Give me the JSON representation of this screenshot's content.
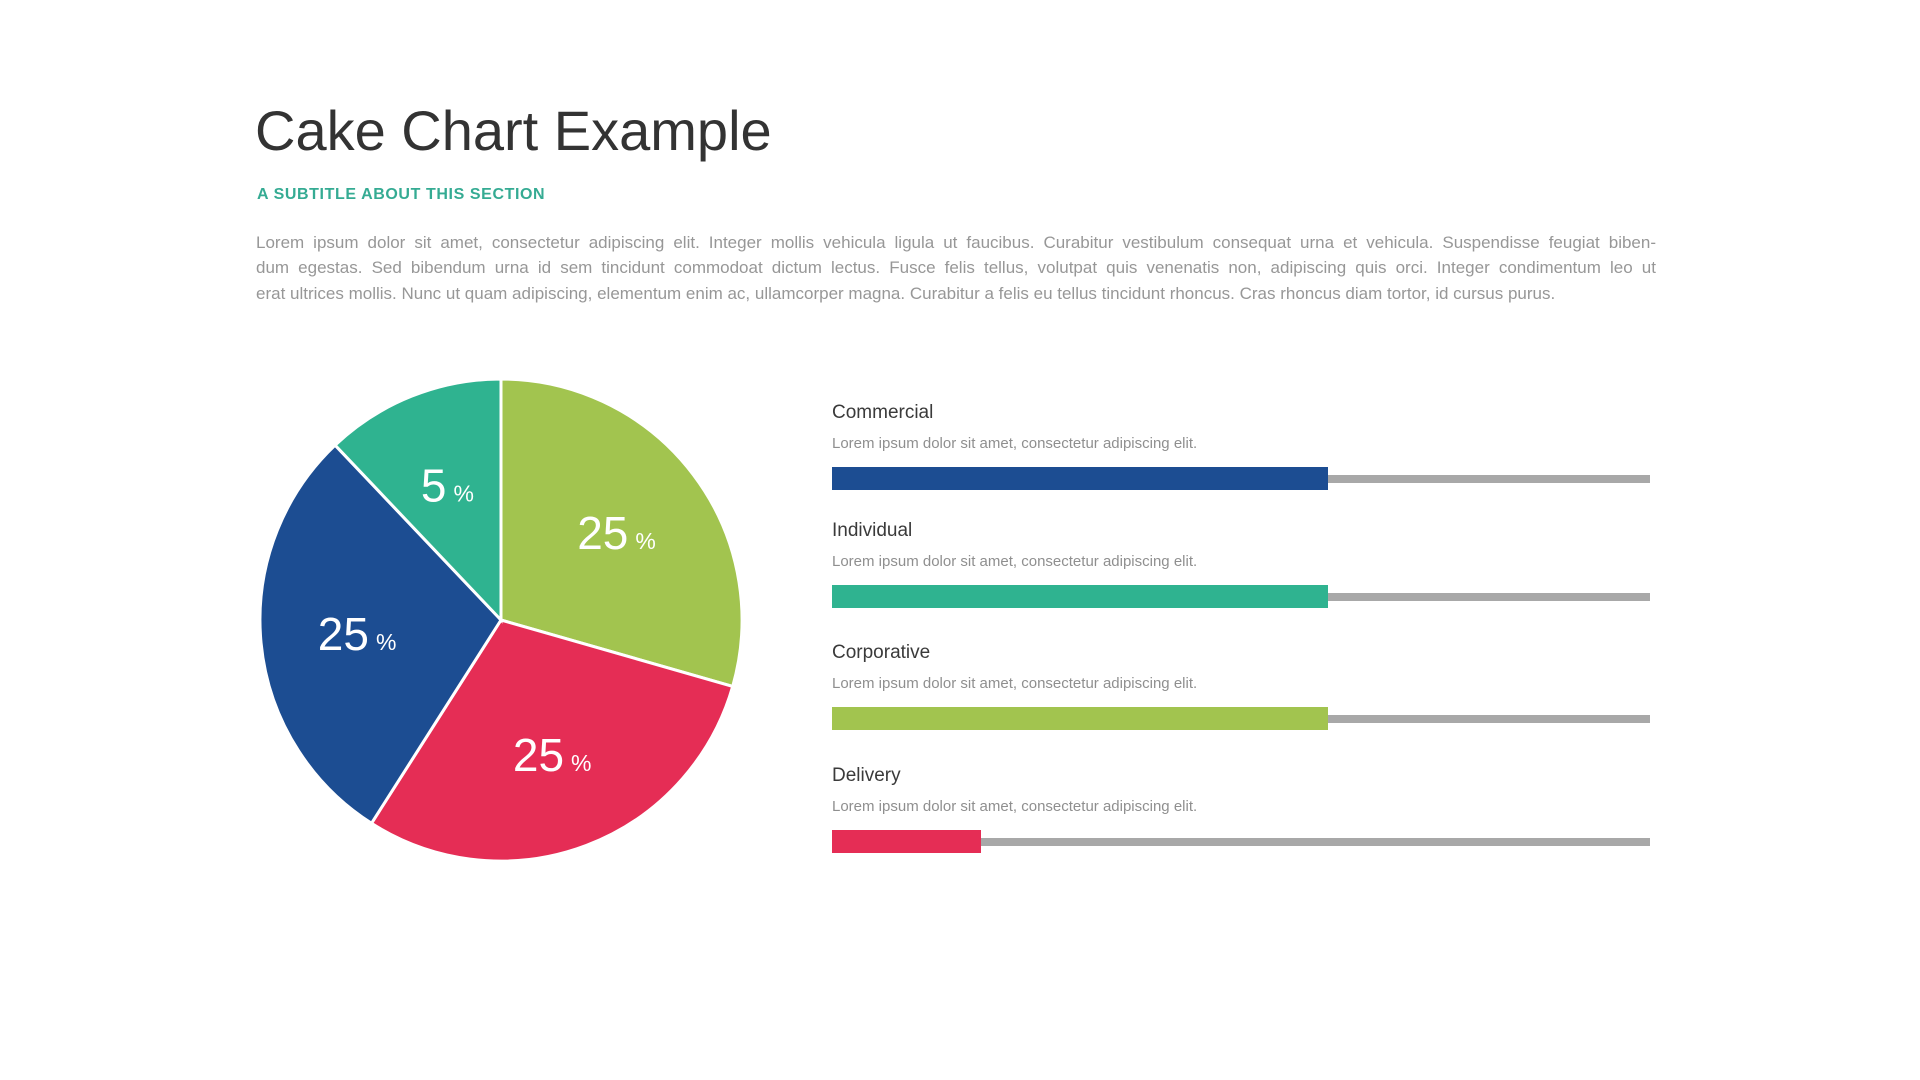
{
  "page": {
    "title": "Cake Chart Example",
    "subtitle": "A SUBTITLE ABOUT THIS SECTION",
    "subtitle_color": "#35ab93",
    "paragraph_lines": [
      "Lorem ipsum dolor sit amet, consectetur adipiscing elit. Integer mollis vehicula ligula ut faucibus. Curabitur vestibulum consequat urna et vehicula. Suspendisse feugiat biben-",
      "dum egestas. Sed bibendum urna id sem tincidunt commodoat dictum lectus. Fusce felis tellus, volutpat quis venenatis non, adipiscing quis orci. Integer condimentum leo ut",
      "erat ultrices mollis. Nunc ut quam adipiscing, elementum enim ac, ullamcorper magna. Curabitur a felis eu tellus tincidunt rhoncus. Cras rhoncus diam tortor, id cursus purus."
    ]
  },
  "chart_data": {
    "type": "pie",
    "title": "Cake Chart Example",
    "subtitle": "A SUBTITLE ABOUT THIS SECTION",
    "legend_position": "right",
    "categories": [
      "Corporative",
      "Delivery",
      "Commercial",
      "Individual"
    ],
    "values": [
      25,
      25,
      25,
      5
    ],
    "unit": "%",
    "slices": [
      {
        "id": "corporative",
        "label": "Corporative",
        "display_value": "25",
        "unit": "%",
        "color": "#a2c44f",
        "start_angle": 0,
        "end_angle": 106
      },
      {
        "id": "delivery",
        "label": "Delivery",
        "display_value": "25",
        "unit": "%",
        "color": "#e52d55",
        "start_angle": 106,
        "end_angle": 212.5
      },
      {
        "id": "commercial",
        "label": "Commercial",
        "display_value": "25",
        "unit": "%",
        "color": "#1c4d92",
        "start_angle": 212.5,
        "end_angle": 316.5
      },
      {
        "id": "individual",
        "label": "Individual",
        "display_value": "5",
        "unit": "%",
        "color": "#2fb390",
        "start_angle": 316.5,
        "end_angle": 360
      }
    ],
    "slice_separator_color": "#ffffff"
  },
  "legend": {
    "track_color": "#a8a8a8",
    "items": [
      {
        "title": "Commercial",
        "description": "Lorem ipsum dolor sit amet, consectetur adipiscing elit.",
        "color": "#1c4d92",
        "fill_percent": 60.6
      },
      {
        "title": "Individual",
        "description": "Lorem ipsum dolor sit amet, consectetur adipiscing elit.",
        "color": "#2fb390",
        "fill_percent": 60.6
      },
      {
        "title": "Corporative",
        "description": "Lorem ipsum dolor sit amet, consectetur adipiscing elit.",
        "color": "#a2c44f",
        "fill_percent": 60.6
      },
      {
        "title": "Delivery",
        "description": "Lorem ipsum dolor sit amet, consectetur adipiscing elit.",
        "color": "#e52d55",
        "fill_percent": 18.2
      }
    ]
  }
}
